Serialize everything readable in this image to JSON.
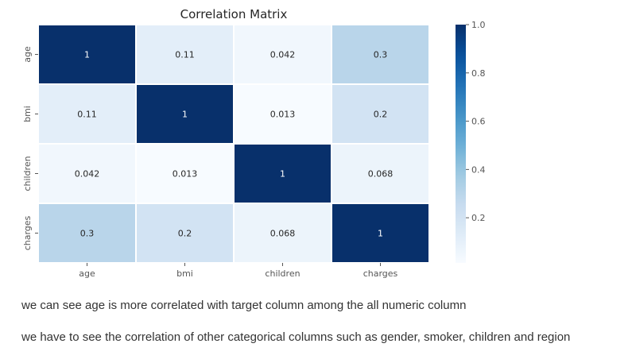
{
  "chart_data": {
    "type": "heatmap",
    "title": "Correlation Matrix",
    "x_categories": [
      "age",
      "bmi",
      "children",
      "charges"
    ],
    "y_categories": [
      "age",
      "bmi",
      "children",
      "charges"
    ],
    "values": [
      [
        1,
        0.11,
        0.042,
        0.3
      ],
      [
        0.11,
        1,
        0.013,
        0.2
      ],
      [
        0.042,
        0.013,
        1,
        0.068
      ],
      [
        0.3,
        0.2,
        0.068,
        1
      ]
    ],
    "annotations": [
      [
        "1",
        "0.11",
        "0.042",
        "0.3"
      ],
      [
        "0.11",
        "1",
        "0.013",
        "0.2"
      ],
      [
        "0.042",
        "0.013",
        "1",
        "0.068"
      ],
      [
        "0.3",
        "0.2",
        "0.068",
        "1"
      ]
    ],
    "colormap": "Blues",
    "colorbar": {
      "range": [
        0.013,
        1.0
      ],
      "ticks": [
        0.2,
        0.4,
        0.6,
        0.8,
        1.0
      ],
      "tick_labels": [
        "0.2",
        "0.4",
        "0.6",
        "0.8",
        "1.0"
      ]
    },
    "grid": false,
    "colors": {
      "low": "#f7fbff",
      "high": "#08306b",
      "annotation_dark_text": "#262626",
      "annotation_light_text": "#ffffff",
      "cell_border": "#ffffff"
    }
  },
  "notes": [
    "we can see age is more correlated with target column among the all numeric column",
    "we have to see the correlation of other categorical columns such as gender, smoker, children and region"
  ]
}
